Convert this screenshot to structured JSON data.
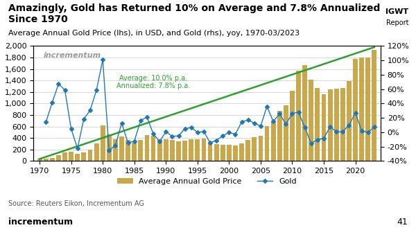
{
  "chart_data": {
    "type": "bar",
    "title": "Amazingly, Gold has Returned 10% on Average and 7.8% Annualized\nSince 1970",
    "subtitle": "Average Annual Gold Price (lhs), in USD, and Gold (rhs), yoy, 1970-03/2023",
    "source": "Source: Reuters Eikon, Incrementum AG",
    "x": [
      1970,
      1971,
      1972,
      1973,
      1974,
      1975,
      1976,
      1977,
      1978,
      1979,
      1980,
      1981,
      1982,
      1983,
      1984,
      1985,
      1986,
      1987,
      1988,
      1989,
      1990,
      1991,
      1992,
      1993,
      1994,
      1995,
      1996,
      1997,
      1998,
      1999,
      2000,
      2001,
      2002,
      2003,
      2004,
      2005,
      2006,
      2007,
      2008,
      2009,
      2010,
      2011,
      2012,
      2013,
      2014,
      2015,
      2016,
      2017,
      2018,
      2019,
      2020,
      2021,
      2022,
      2023
    ],
    "xlim": [
      1969,
      2024
    ],
    "xticks": [
      1970,
      1975,
      1980,
      1985,
      1990,
      1995,
      2000,
      2005,
      2010,
      2015,
      2020
    ],
    "ylim": [
      0,
      2000
    ],
    "yticks": [
      0,
      200,
      400,
      600,
      800,
      {
        "value": 1000,
        "label": "1,000"
      },
      {
        "value": 1200,
        "label": "1,200"
      },
      {
        "value": 1400,
        "label": "1,400"
      },
      {
        "value": 1600,
        "label": "1,600"
      },
      {
        "value": 1800,
        "label": "1,800"
      },
      {
        "value": 2000,
        "label": "2,000"
      }
    ],
    "y2lim": [
      -40,
      120
    ],
    "y2ticks": [
      {
        "value": -40,
        "label": "-40%"
      },
      {
        "value": -20,
        "label": "-20%"
      },
      {
        "value": 0,
        "label": "0%"
      },
      {
        "value": 20,
        "label": "20%"
      },
      {
        "value": 40,
        "label": "40%"
      },
      {
        "value": 60,
        "label": "60%"
      },
      {
        "value": 80,
        "label": "80%"
      },
      {
        "value": 100,
        "label": "100%"
      },
      {
        "value": 120,
        "label": "120%"
      }
    ],
    "grid": true,
    "legend": "lower center",
    "series": [
      {
        "name": "Average Annual Gold Price",
        "type": "bar",
        "color": "#C9A84C",
        "values": [
          36,
          41,
          58,
          97,
          154,
          161,
          125,
          148,
          193,
          306,
          615,
          460,
          376,
          424,
          361,
          317,
          368,
          447,
          437,
          381,
          384,
          362,
          344,
          360,
          384,
          384,
          388,
          331,
          294,
          279,
          279,
          271,
          310,
          363,
          409,
          444,
          604,
          695,
          872,
          972,
          1225,
          1571,
          1669,
          1411,
          1266,
          1160,
          1251,
          1257,
          1268,
          1393,
          1770,
          1800,
          1800,
          1930
        ]
      },
      {
        "name": "Gold",
        "type": "line",
        "axis": "y2",
        "color": "#1f77b4",
        "marker": "D",
        "values": [
          null,
          13.9,
          41.5,
          67.2,
          58.8,
          4.5,
          -22.4,
          18.4,
          30.4,
          58.5,
          101.0,
          -25.2,
          -18.3,
          12.8,
          -14.9,
          -12.2,
          16.1,
          21.5,
          -2.2,
          -12.8,
          0.8,
          -5.7,
          -5.0,
          4.7,
          6.7,
          0.0,
          1.0,
          -14.7,
          -11.2,
          -5.1,
          0.0,
          -2.9,
          14.4,
          17.1,
          12.7,
          8.5,
          36.0,
          15.0,
          25.5,
          11.5,
          26.0,
          28.2,
          6.2,
          -15.5,
          -10.3,
          -8.4,
          7.8,
          0.5,
          0.9,
          9.9,
          27.1,
          1.7,
          0.0,
          7.2
        ]
      }
    ],
    "trend": {
      "x": [
        1970,
        2023
      ],
      "values": [
        36,
        1980
      ],
      "color": "#2ca02c"
    },
    "annotations": [
      "Average: 10.0% p.a.\nAnnualized: 7.8% p.a.",
      "incrementum",
      "IGWT",
      "Report",
      "incrementum",
      "41"
    ]
  }
}
